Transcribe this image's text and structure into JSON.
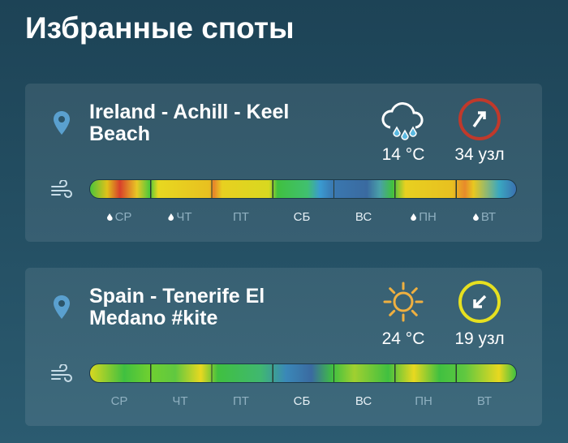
{
  "header": {
    "title": "Избранные споты"
  },
  "spots": [
    {
      "name": "Ireland - Achill - Keel Beach",
      "temperature": "14 °C",
      "wind": "34 узл",
      "days": [
        "СР",
        "ЧТ",
        "ПТ",
        "СБ",
        "ВС",
        "ПН",
        "ВТ"
      ]
    },
    {
      "name": "Spain - Tenerife El Medano #kite",
      "temperature": "24 °C",
      "wind": "19 узл",
      "days": [
        "СР",
        "ЧТ",
        "ПТ",
        "СБ",
        "ВС",
        "ПН",
        "ВТ"
      ]
    }
  ]
}
